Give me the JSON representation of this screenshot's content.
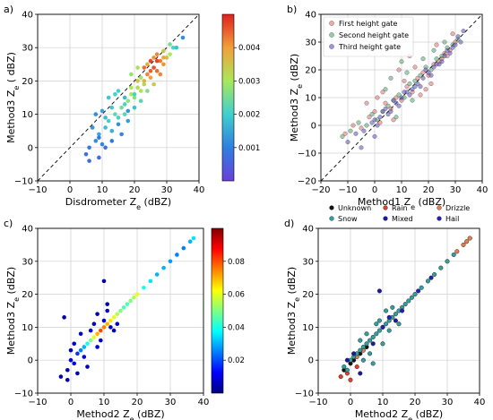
{
  "chart_data": [
    {
      "panel_label": "a)",
      "type": "scatter",
      "xlabel": "Disdrometer Z",
      "xlabel_sub": "e",
      "xlabel_unit": "(dBZ)",
      "ylabel": "Method3 Z",
      "ylabel_sub": "e",
      "ylabel_unit": "( dBZ)",
      "xlim": [
        -10,
        40
      ],
      "ylim": [
        -10,
        40
      ],
      "xticks": [
        "−10",
        "0",
        "10",
        "20",
        "30",
        "40"
      ],
      "yticks": [
        "−10",
        "0",
        "10",
        "20",
        "30",
        "40"
      ],
      "grid": true,
      "one_to_one_line": true,
      "colormap": "rainbow",
      "colorbar": {
        "min": 0.0,
        "max": 0.005,
        "ticks": [
          "0.001",
          "0.002",
          "0.003",
          "0.004"
        ]
      },
      "series": [
        {
          "x": [
            5,
            6,
            8,
            9,
            10,
            11,
            12,
            13,
            14,
            15,
            16,
            17,
            18,
            19,
            20,
            21,
            22,
            23,
            24,
            25,
            26,
            27,
            28,
            29,
            30,
            31,
            32,
            7,
            9,
            11,
            13,
            15,
            17,
            19,
            21,
            23,
            25,
            27,
            29,
            16,
            18,
            20,
            22,
            24,
            26,
            28,
            12,
            14,
            10,
            8,
            6,
            23,
            25,
            27,
            29,
            31,
            33,
            35,
            18,
            20,
            22,
            24,
            26,
            15,
            17,
            19,
            21,
            13,
            11,
            9
          ],
          "y": [
            -2,
            0,
            2,
            4,
            1,
            6,
            8,
            5,
            10,
            9,
            12,
            10,
            14,
            16,
            15,
            18,
            17,
            20,
            22,
            21,
            24,
            23,
            26,
            25,
            27,
            28,
            30,
            6,
            3,
            9,
            12,
            7,
            13,
            18,
            20,
            19,
            23,
            26,
            27,
            4,
            8,
            12,
            14,
            17,
            19,
            22,
            15,
            16,
            11,
            10,
            -4,
            24,
            26,
            28,
            29,
            31,
            30,
            33,
            11,
            16,
            21,
            25,
            27,
            17,
            15,
            22,
            24,
            2,
            0,
            -3
          ],
          "density": [
            0.0008,
            0.0009,
            0.0012,
            0.0015,
            0.0011,
            0.0018,
            0.002,
            0.0016,
            0.0023,
            0.0021,
            0.0025,
            0.0022,
            0.0028,
            0.003,
            0.0027,
            0.0032,
            0.0031,
            0.0037,
            0.0042,
            0.004,
            0.0046,
            0.0044,
            0.0043,
            0.0041,
            0.0036,
            0.003,
            0.0022,
            0.0013,
            0.0009,
            0.0017,
            0.0019,
            0.0012,
            0.0021,
            0.003,
            0.0035,
            0.0033,
            0.0045,
            0.0047,
            0.0039,
            0.0011,
            0.0014,
            0.0018,
            0.0022,
            0.0026,
            0.0034,
            0.0042,
            0.0019,
            0.002,
            0.0014,
            0.0012,
            0.0007,
            0.0044,
            0.0047,
            0.0042,
            0.0035,
            0.0025,
            0.0018,
            0.0012,
            0.0013,
            0.0021,
            0.0029,
            0.0038,
            0.0041,
            0.002,
            0.0017,
            0.0028,
            0.0031,
            0.0009,
            0.0008,
            0.0007
          ]
        }
      ]
    },
    {
      "panel_label": "b)",
      "type": "scatter",
      "xlabel": "Method1 Z",
      "xlabel_sub": "e",
      "xlabel_unit": "(dBZ)",
      "ylabel": "Method3 Z",
      "ylabel_sub": "e",
      "ylabel_unit": "(dBZ)",
      "xlim": [
        -20,
        40
      ],
      "ylim": [
        -20,
        40
      ],
      "xticks": [
        "−20",
        "−10",
        "0",
        "10",
        "20",
        "30",
        "40"
      ],
      "yticks": [
        "−20",
        "−10",
        "0",
        "10",
        "20",
        "30",
        "40"
      ],
      "grid": true,
      "one_to_one_line": true,
      "legend": {
        "placement": "top-left"
      },
      "series": [
        {
          "name": "First height gate",
          "color": "#e07070",
          "x": [
            -11,
            -8,
            -5,
            -2,
            0,
            2,
            4,
            6,
            8,
            10,
            12,
            14,
            16,
            18,
            20,
            22,
            24,
            26,
            28,
            30,
            5,
            9,
            13,
            17,
            21,
            25,
            3,
            7,
            11,
            15,
            19,
            23,
            -3,
            1,
            27,
            29
          ],
          "y": [
            -3,
            0,
            -1,
            3,
            5,
            1,
            8,
            6,
            10,
            9,
            14,
            12,
            17,
            19,
            18,
            22,
            23,
            26,
            27,
            30,
            28,
            20,
            25,
            11,
            15,
            24,
            12,
            2,
            16,
            21,
            13,
            29,
            8,
            10,
            25,
            33
          ]
        },
        {
          "name": "Second height gate",
          "color": "#50a870",
          "x": [
            -12,
            -9,
            -6,
            -3,
            -1,
            1,
            3,
            5,
            7,
            9,
            11,
            13,
            15,
            17,
            19,
            21,
            23,
            25,
            27,
            29,
            31,
            6,
            10,
            14,
            18,
            22,
            26,
            4,
            8,
            12
          ],
          "y": [
            -4,
            -2,
            1,
            0,
            4,
            2,
            5,
            7,
            9,
            11,
            10,
            15,
            16,
            18,
            21,
            20,
            24,
            25,
            28,
            29,
            31,
            17,
            23,
            9,
            24,
            27,
            30,
            13,
            3,
            19
          ]
        },
        {
          "name": "Third height gate",
          "color": "#5a50c0",
          "x": [
            -10,
            -7,
            -4,
            -1,
            0,
            2,
            4,
            6,
            8,
            10,
            12,
            14,
            16,
            18,
            20,
            22,
            24,
            26,
            28,
            30,
            32,
            1,
            5,
            9,
            13,
            17,
            21,
            25,
            29,
            3,
            7,
            11,
            15,
            19,
            23,
            27,
            31,
            -5,
            0,
            33
          ],
          "y": [
            -6,
            -3,
            -2,
            1,
            2,
            3,
            6,
            5,
            8,
            10,
            12,
            13,
            15,
            17,
            19,
            21,
            22,
            25,
            26,
            29,
            30,
            0,
            4,
            7,
            11,
            14,
            18,
            23,
            28,
            5,
            9,
            12,
            14,
            20,
            22,
            27,
            32,
            -8,
            -4,
            34
          ]
        }
      ]
    },
    {
      "panel_label": "c)",
      "type": "scatter",
      "xlabel": "Method2 Z",
      "xlabel_sub": "e",
      "xlabel_unit": "(dBZ)",
      "ylabel": "Method3 Z",
      "ylabel_sub": "e",
      "ylabel_unit": "(dBZ)",
      "xlim": [
        -10,
        40
      ],
      "ylim": [
        -10,
        40
      ],
      "xticks": [
        "−10",
        "0",
        "10",
        "20",
        "30",
        "40"
      ],
      "yticks": [
        "−10",
        "0",
        "10",
        "20",
        "30",
        "40"
      ],
      "grid": true,
      "colormap": "jet",
      "colorbar": {
        "min": 0.0,
        "max": 0.1,
        "ticks": [
          "0.02",
          "0.04",
          "0.06",
          "0.08"
        ]
      },
      "series": [
        {
          "x": [
            -3,
            -2,
            -1,
            0,
            1,
            2,
            3,
            4,
            5,
            6,
            7,
            8,
            9,
            10,
            11,
            12,
            13,
            14,
            15,
            16,
            17,
            18,
            19,
            20,
            22,
            24,
            26,
            28,
            30,
            32,
            34,
            36,
            37,
            1,
            3,
            5,
            7,
            9,
            11,
            13,
            2,
            4,
            6,
            8,
            10,
            0,
            -1,
            12,
            14,
            8,
            10,
            11
          ],
          "y": [
            -5,
            13,
            -3,
            0,
            -1,
            2,
            3,
            4,
            5,
            6,
            7,
            8,
            9,
            10,
            11,
            12,
            13,
            14,
            15,
            16,
            17,
            18,
            19,
            20,
            22,
            24,
            26,
            28,
            30,
            32,
            34,
            36,
            37,
            5,
            8,
            -2,
            11,
            6,
            15,
            9,
            -4,
            1,
            9,
            4,
            12,
            3,
            -6,
            10,
            11,
            14,
            24,
            17
          ],
          "density": [
            0.005,
            0.004,
            0.006,
            0.01,
            0.012,
            0.018,
            0.025,
            0.03,
            0.04,
            0.05,
            0.06,
            0.07,
            0.08,
            0.075,
            0.07,
            0.065,
            0.06,
            0.055,
            0.05,
            0.045,
            0.045,
            0.05,
            0.055,
            0.06,
            0.04,
            0.035,
            0.03,
            0.03,
            0.028,
            0.025,
            0.025,
            0.03,
            0.035,
            0.008,
            0.007,
            0.006,
            0.006,
            0.007,
            0.008,
            0.006,
            0.005,
            0.009,
            0.01,
            0.009,
            0.008,
            0.006,
            0.005,
            0.007,
            0.006,
            0.005,
            0.004,
            0.005
          ]
        }
      ]
    },
    {
      "panel_label": "d)",
      "type": "scatter",
      "xlabel": "Method2 Z",
      "xlabel_sub": "e",
      "xlabel_unit": "(dBZ)",
      "ylabel": "Method3 Z",
      "ylabel_sub": "e",
      "ylabel_unit": "(dBZ)",
      "xlim": [
        -10,
        40
      ],
      "ylim": [
        -10,
        40
      ],
      "xticks": [
        "−10",
        "0",
        "10",
        "20",
        "30",
        "40"
      ],
      "yticks": [
        "−10",
        "0",
        "10",
        "20",
        "30",
        "40"
      ],
      "grid": true,
      "legend": {
        "placement": "top, above plot"
      },
      "series": [
        {
          "name": "Unknown",
          "color": "#111111",
          "x": [
            -2,
            0,
            1,
            3,
            5
          ],
          "y": [
            -3,
            -1,
            0,
            2,
            4
          ]
        },
        {
          "name": "Rain",
          "color": "#e04030",
          "x": [
            -3,
            -1,
            0,
            2
          ],
          "y": [
            -5,
            -4,
            -6,
            -2
          ]
        },
        {
          "name": "Drizzle",
          "color": "#e08050",
          "x": [
            33,
            35,
            36,
            37,
            2,
            4
          ],
          "y": [
            33,
            35,
            36,
            37,
            1,
            3
          ]
        },
        {
          "name": "Snow",
          "color": "#30a0a0",
          "x": [
            -2,
            -1,
            0,
            1,
            2,
            3,
            4,
            5,
            6,
            7,
            8,
            9,
            10,
            11,
            12,
            13,
            14,
            15,
            16,
            17,
            18,
            19,
            20,
            22,
            24,
            26,
            28,
            30,
            32,
            3,
            6,
            9,
            12,
            15,
            5,
            7,
            11,
            4,
            8,
            10,
            13
          ],
          "y": [
            -2,
            -3,
            0,
            1,
            2,
            3,
            4,
            5,
            6,
            7,
            8,
            9,
            10,
            11,
            12,
            13,
            14,
            15,
            16,
            17,
            18,
            19,
            20,
            22,
            24,
            26,
            28,
            30,
            32,
            6,
            2,
            12,
            9,
            11,
            8,
            -1,
            15,
            0,
            11,
            5,
            16
          ]
        },
        {
          "name": "Mixed",
          "color": "#1a1aa0",
          "x": [
            -1,
            1,
            3,
            7,
            9,
            14
          ],
          "y": [
            0,
            2,
            -4,
            5,
            21,
            12
          ]
        },
        {
          "name": "Hail",
          "color": "#2020c0",
          "x": [
            10,
            12,
            16,
            21,
            25
          ],
          "y": [
            10,
            13,
            15,
            21,
            25
          ]
        }
      ]
    }
  ]
}
